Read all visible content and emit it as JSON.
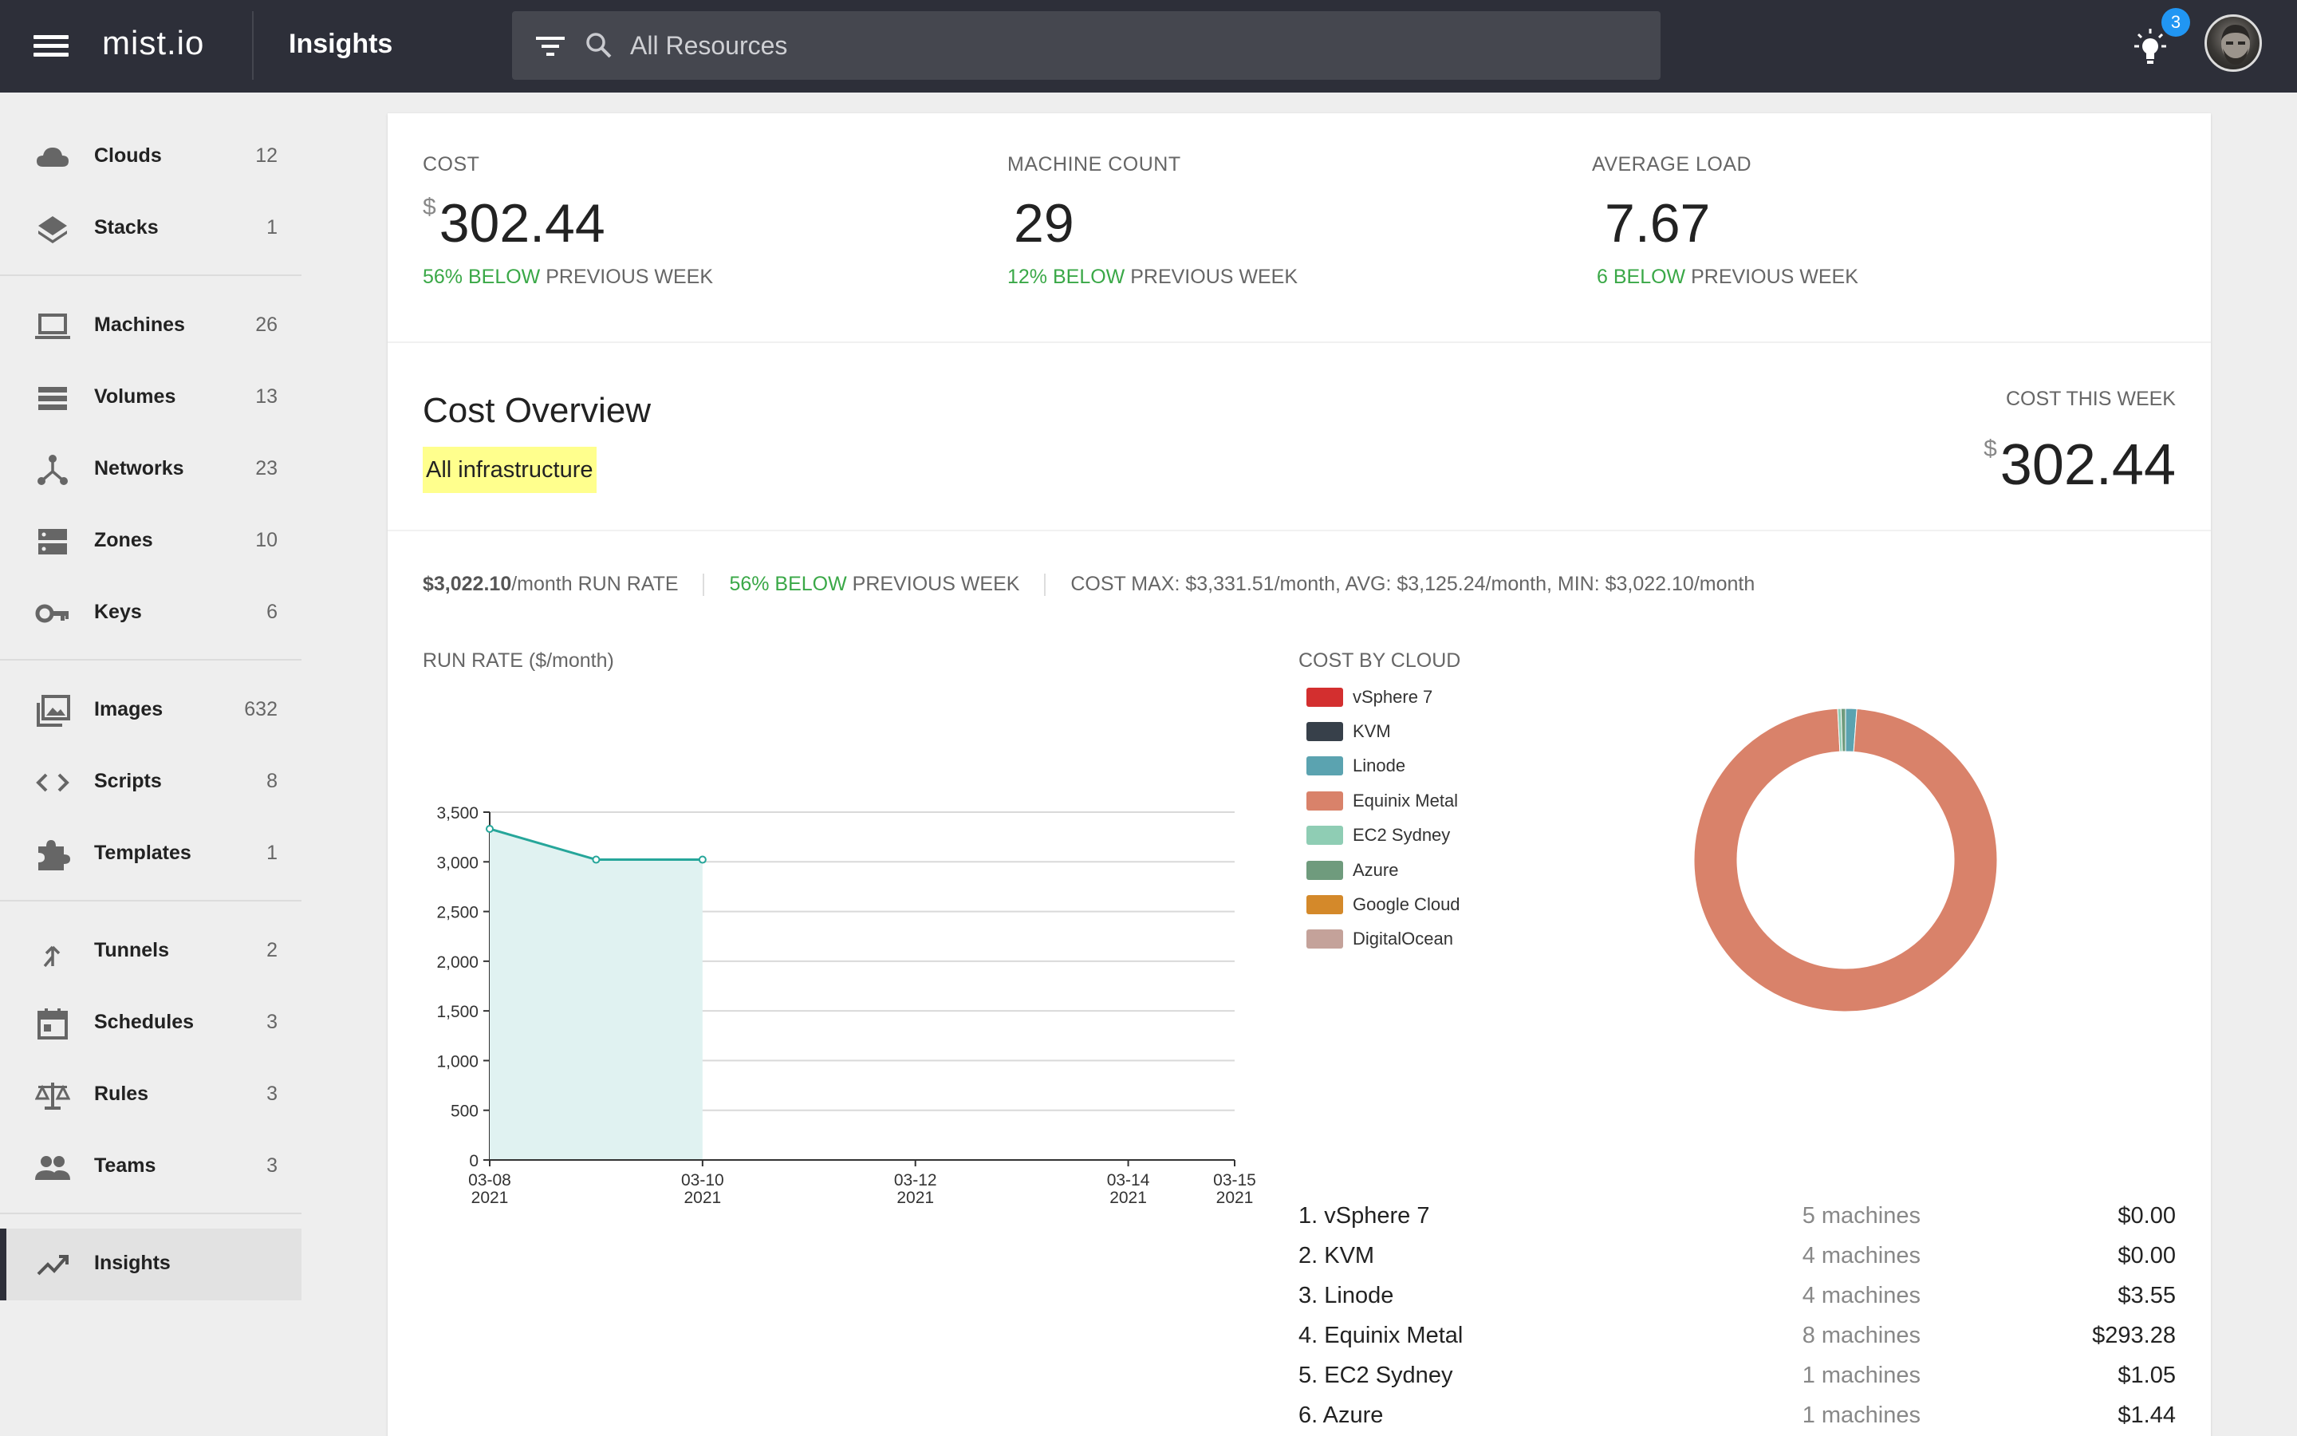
{
  "app": {
    "logo": "mist.io",
    "title": "Insights",
    "search_placeholder": "All Resources",
    "notifications_count": "3"
  },
  "sidebar": {
    "items": [
      {
        "label": "Clouds",
        "count": "12",
        "icon": "cloud-icon"
      },
      {
        "label": "Stacks",
        "count": "1",
        "icon": "layers-icon"
      },
      {
        "label": "Machines",
        "count": "26",
        "icon": "laptop-icon"
      },
      {
        "label": "Volumes",
        "count": "13",
        "icon": "storage-icon"
      },
      {
        "label": "Networks",
        "count": "23",
        "icon": "network-icon"
      },
      {
        "label": "Zones",
        "count": "10",
        "icon": "dns-icon"
      },
      {
        "label": "Keys",
        "count": "6",
        "icon": "key-icon"
      },
      {
        "label": "Images",
        "count": "632",
        "icon": "images-icon"
      },
      {
        "label": "Scripts",
        "count": "8",
        "icon": "code-icon"
      },
      {
        "label": "Templates",
        "count": "1",
        "icon": "puzzle-icon"
      },
      {
        "label": "Tunnels",
        "count": "2",
        "icon": "tunnel-icon"
      },
      {
        "label": "Schedules",
        "count": "3",
        "icon": "calendar-icon"
      },
      {
        "label": "Rules",
        "count": "3",
        "icon": "scale-icon"
      },
      {
        "label": "Teams",
        "count": "3",
        "icon": "people-icon"
      },
      {
        "label": "Insights",
        "count": "",
        "icon": "trending-up-icon"
      }
    ]
  },
  "stats": {
    "cost": {
      "label": "COST",
      "currency": "$",
      "value": "302.44",
      "trend_value": "56% BELOW",
      "trend_suffix": " PREVIOUS WEEK"
    },
    "machine_count": {
      "label": "MACHINE COUNT",
      "value": "29",
      "trend_value": "12% BELOW",
      "trend_suffix": " PREVIOUS WEEK"
    },
    "average_load": {
      "label": "AVERAGE LOAD",
      "value": "7.67",
      "trend_value": "6 BELOW",
      "trend_suffix": " PREVIOUS WEEK"
    }
  },
  "overview": {
    "title": "Cost Overview",
    "tag": "All infrastructure",
    "cost_this_week_label": "COST THIS WEEK",
    "cost_this_week_currency": "$",
    "cost_this_week_value": "302.44",
    "run_rate_value": "$3,022.10",
    "run_rate_suffix": "/month RUN RATE",
    "trend_value": "56% BELOW",
    "trend_suffix": " PREVIOUS WEEK",
    "cost_stats": "COST MAX: $3,331.51/month, AVG: $3,125.24/month, MIN: $3,022.10/month"
  },
  "chart_data": [
    {
      "type": "area",
      "title": "RUN RATE ($/month)",
      "x": [
        "2021-03-08",
        "2021-03-09",
        "2021-03-10"
      ],
      "values": [
        3331.51,
        3022.1,
        3022.1
      ],
      "xlim": [
        "2021-03-08",
        "2021-03-15"
      ],
      "ylim": [
        0,
        3500
      ],
      "yticks": [
        0,
        500,
        1000,
        1500,
        2000,
        2500,
        3000,
        3500
      ],
      "ytick_labels": [
        "0",
        "500",
        "1,000",
        "1,500",
        "2,000",
        "2,500",
        "3,000",
        "3,500"
      ],
      "xticks": [
        "2021-03-08",
        "2021-03-10",
        "2021-03-12",
        "2021-03-14",
        "2021-03-15"
      ],
      "xtick_labels": [
        [
          "03-08",
          "2021"
        ],
        [
          "03-10",
          "2021"
        ],
        [
          "03-12",
          "2021"
        ],
        [
          "03-14",
          "2021"
        ],
        [
          "03-15",
          "2021"
        ]
      ],
      "line_color": "#26a69a",
      "fill_color": "#e0f2f1",
      "grid": true
    },
    {
      "type": "pie",
      "title": "COST BY CLOUD",
      "donut": true,
      "legend_position": "left",
      "categories": [
        "vSphere 7",
        "KVM",
        "Linode",
        "Equinix Metal",
        "EC2 Sydney",
        "Azure",
        "Google Cloud",
        "DigitalOcean"
      ],
      "values": [
        0.0,
        0.0,
        3.55,
        293.28,
        1.05,
        1.44,
        0,
        0
      ],
      "colors": [
        "#d32f2f",
        "#37404a",
        "#5ba3b0",
        "#d9826a",
        "#8fcdb4",
        "#6f9b7d",
        "#d4892a",
        "#c4a29a"
      ]
    }
  ],
  "cost_by_cloud_list": [
    {
      "name": "1. vSphere 7",
      "machines": "5 machines",
      "cost": "$0.00"
    },
    {
      "name": "2. KVM",
      "machines": "4 machines",
      "cost": "$0.00"
    },
    {
      "name": "3. Linode",
      "machines": "4 machines",
      "cost": "$3.55"
    },
    {
      "name": "4. Equinix Metal",
      "machines": "8 machines",
      "cost": "$293.28"
    },
    {
      "name": "5. EC2 Sydney",
      "machines": "1 machines",
      "cost": "$1.05"
    },
    {
      "name": "6. Azure",
      "machines": "1 machines",
      "cost": "$1.44"
    }
  ]
}
